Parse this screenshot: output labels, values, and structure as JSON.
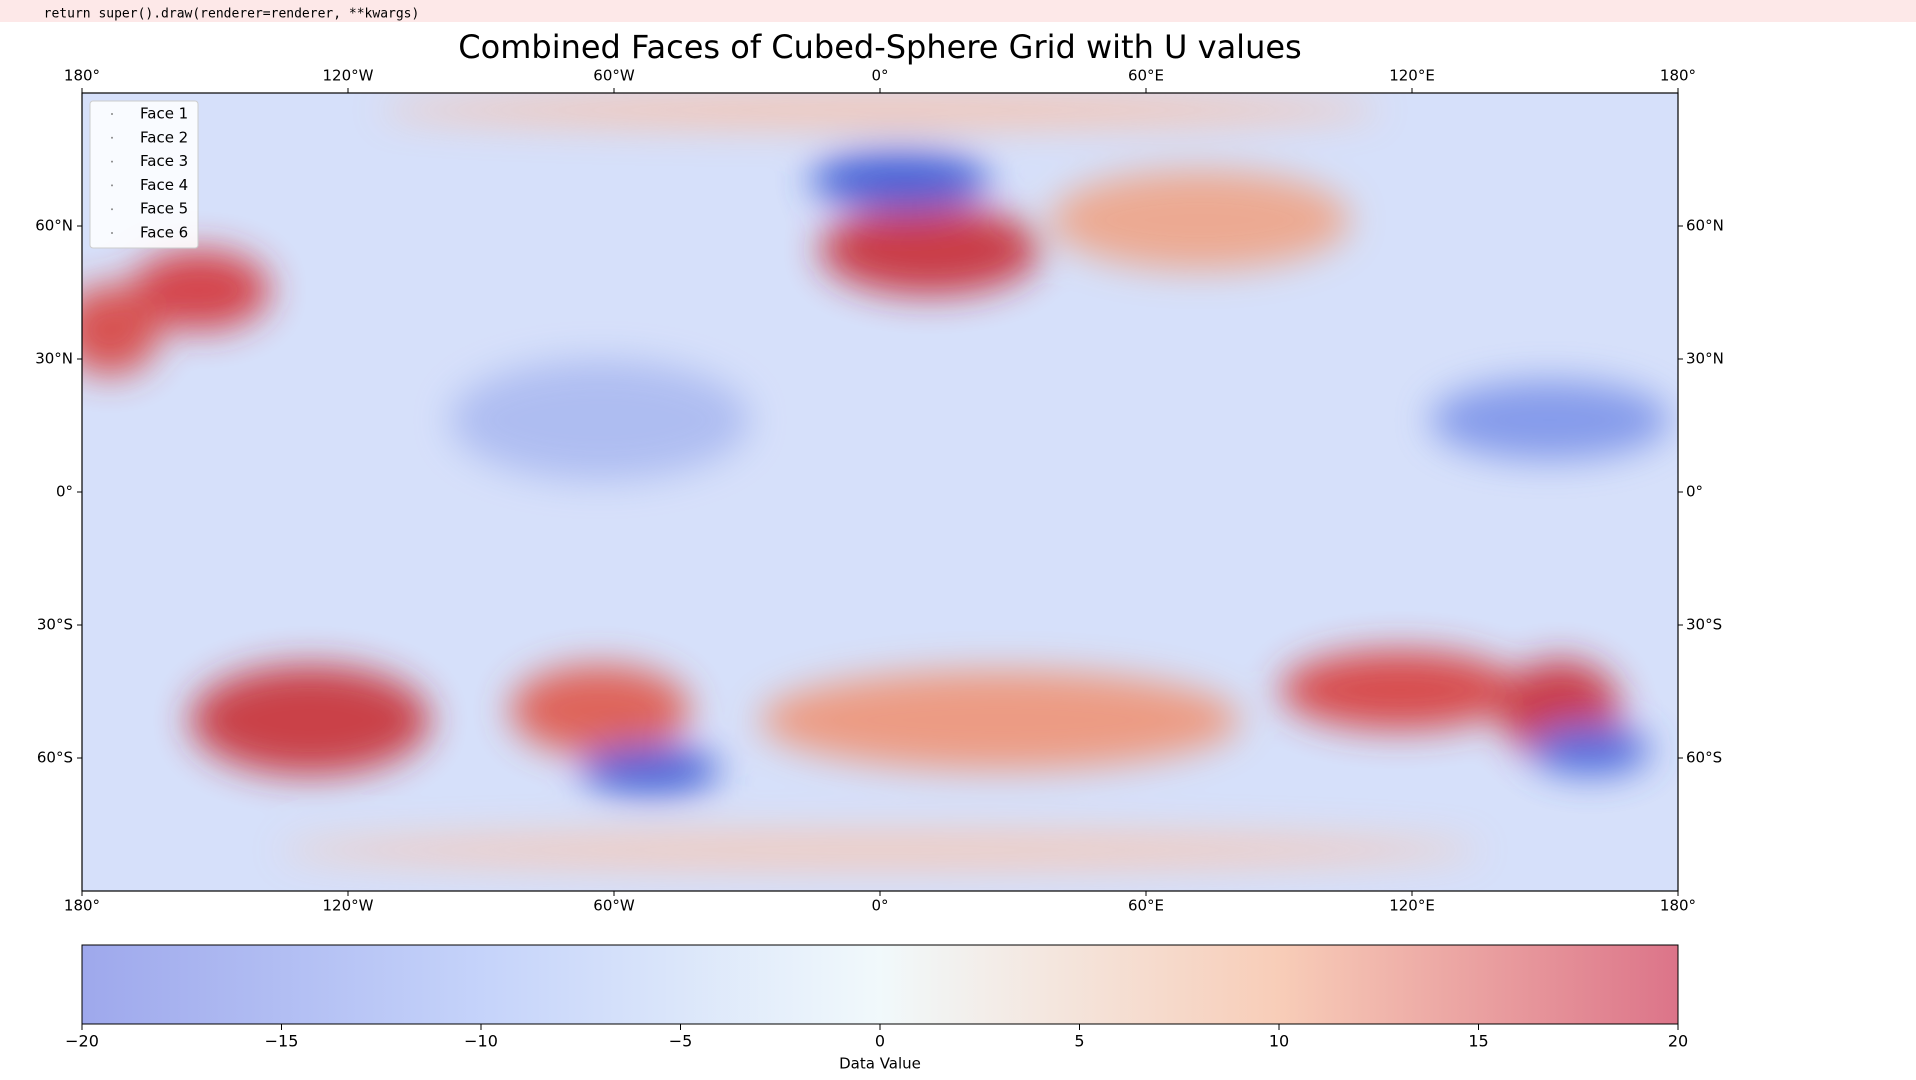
{
  "console": {
    "lines": [
      "  return super().draw(renderer=renderer, **kwargs)"
    ]
  },
  "chart_data": {
    "type": "map",
    "title": "Combined Faces of Cubed-Sphere Grid with U values",
    "xlim": [
      -180,
      180
    ],
    "ylim": [
      -90,
      90
    ],
    "xticks": [
      {
        "value": -180,
        "label": "180°"
      },
      {
        "value": -120,
        "label": "120°W"
      },
      {
        "value": -60,
        "label": "60°W"
      },
      {
        "value": 0,
        "label": "0°"
      },
      {
        "value": 60,
        "label": "60°E"
      },
      {
        "value": 120,
        "label": "120°E"
      },
      {
        "value": 180,
        "label": "180°"
      }
    ],
    "yticks": [
      {
        "value": -60,
        "label": "60°S"
      },
      {
        "value": -30,
        "label": "30°S"
      },
      {
        "value": 0,
        "label": "0°"
      },
      {
        "value": 30,
        "label": "30°N"
      },
      {
        "value": 60,
        "label": "60°N"
      }
    ],
    "legend": {
      "position": "upper left",
      "entries": [
        "Face 1",
        "Face 2",
        "Face 3",
        "Face 4",
        "Face 5",
        "Face 6"
      ]
    },
    "colorbar": {
      "label": "Data Value",
      "lim": [
        -20,
        20
      ],
      "ticks": [
        {
          "value": -20,
          "label": "−20"
        },
        {
          "value": -15,
          "label": "−15"
        },
        {
          "value": -10,
          "label": "−10"
        },
        {
          "value": -5,
          "label": "−5"
        },
        0,
        5,
        10,
        15,
        20
      ]
    }
  }
}
